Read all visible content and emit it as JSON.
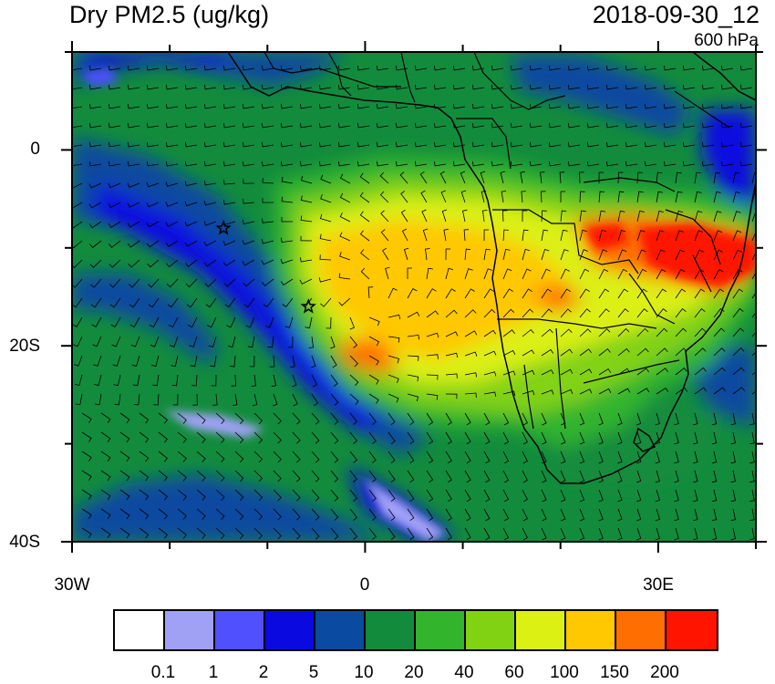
{
  "title_left": "Dry PM2.5 (ug/kg)",
  "title_right": "2018-09-30_12",
  "level_label": "600 hPa",
  "axes": {
    "y_labels": [
      "0",
      "20S",
      "40S"
    ],
    "x_labels": [
      "30W",
      "0",
      "30E"
    ],
    "lon_range": [
      -30,
      40
    ],
    "lat_range": [
      -40,
      10
    ]
  },
  "colorbar": {
    "colors": [
      "#ffffff",
      "#a0a0f5",
      "#5050ff",
      "#0a0ae0",
      "#0a4aa0",
      "#128c3c",
      "#32b42d",
      "#82d214",
      "#dcf014",
      "#ffc800",
      "#ff6e00",
      "#ff1400"
    ],
    "labels": [
      "0.1",
      "1",
      "2",
      "5",
      "10",
      "20",
      "40",
      "60",
      "100",
      "150",
      "200"
    ]
  },
  "markers": [
    {
      "symbol": "star",
      "lon": -14.5,
      "lat": -8
    },
    {
      "symbol": "star",
      "lon": -5.8,
      "lat": -16
    }
  ]
}
